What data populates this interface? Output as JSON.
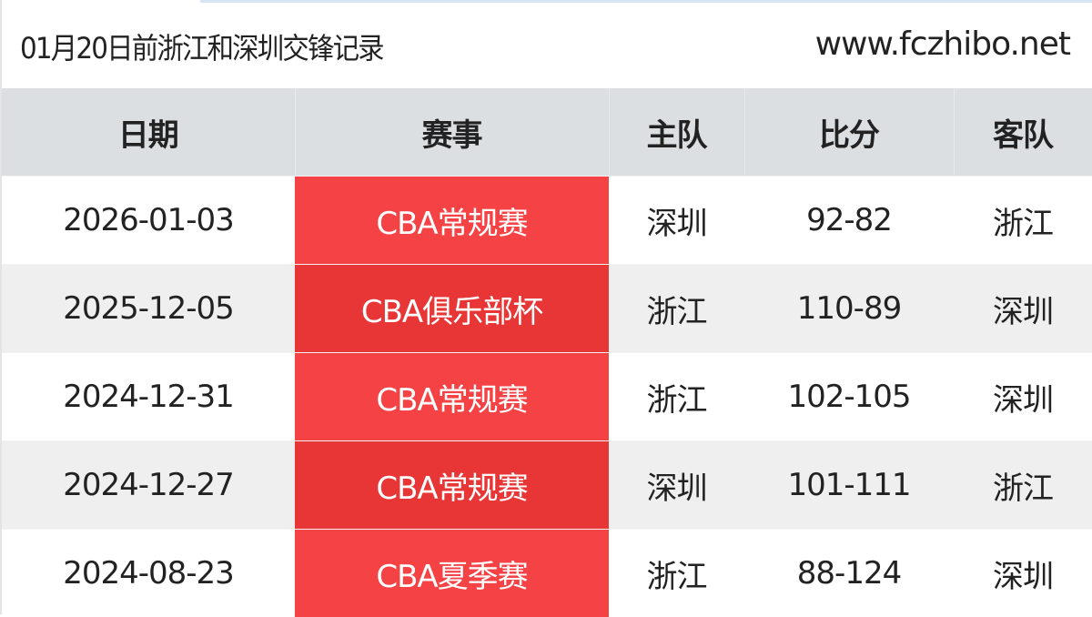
{
  "header": {
    "title": "01月20日前浙江和深圳交锋记录",
    "site": "www.fczhibo.net"
  },
  "table": {
    "columns": [
      "日期",
      "赛事",
      "主队",
      "比分",
      "客队"
    ],
    "rows": [
      {
        "date": "2026-01-03",
        "competition": "CBA常规赛",
        "home": "深圳",
        "score": "92-82",
        "away": "浙江"
      },
      {
        "date": "2025-12-05",
        "competition": "CBA俱乐部杯",
        "home": "浙江",
        "score": "110-89",
        "away": "深圳"
      },
      {
        "date": "2024-12-31",
        "competition": "CBA常规赛",
        "home": "浙江",
        "score": "102-105",
        "away": "深圳"
      },
      {
        "date": "2024-12-27",
        "competition": "CBA常规赛",
        "home": "深圳",
        "score": "101-111",
        "away": "浙江"
      },
      {
        "date": "2024-08-23",
        "competition": "CBA夏季赛",
        "home": "浙江",
        "score": "88-124",
        "away": "深圳"
      }
    ]
  },
  "colors": {
    "competition_bg": "#f54245",
    "competition_bg_alt": "#e83535",
    "header_bg": "#dcdfe2"
  }
}
